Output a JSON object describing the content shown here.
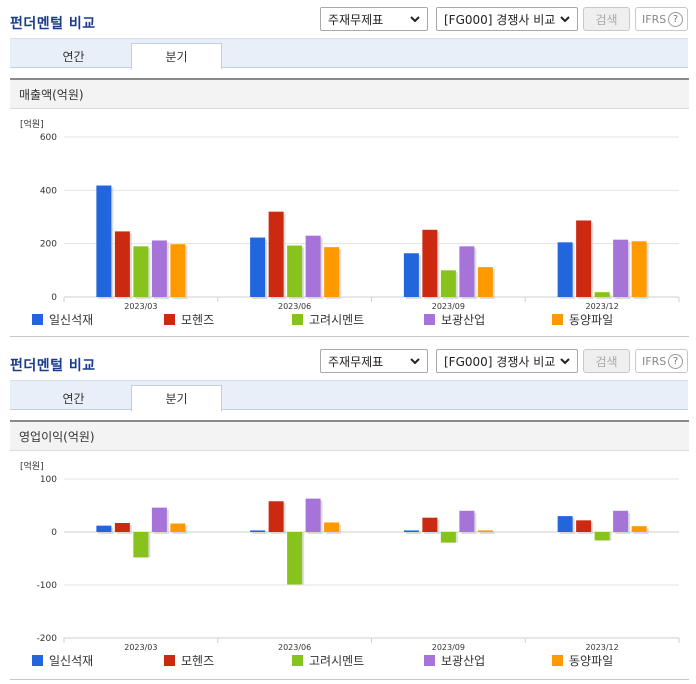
{
  "common": {
    "section_title": "펀더멘털 비교",
    "select_statement": "주재무제표",
    "select_group": "[FG000] 경쟁사 비교",
    "search_label": "검색",
    "ifrs_label": "IFRS",
    "help_label": "?",
    "tab_annual": "연간",
    "tab_quarter": "분기",
    "unit_label": "[억원]"
  },
  "colors": {
    "일신석재": "#2266dd",
    "모헨즈": "#cc2a10",
    "고려시멘트": "#88c21c",
    "보광산업": "#a673d8",
    "동양파일": "#ff9900"
  },
  "charts": [
    {
      "heading": "매출액(억원)",
      "chart_data": {
        "type": "bar",
        "title": "매출액(억원)",
        "unit": "[억원]",
        "categories": [
          "2023/03",
          "2023/06",
          "2023/09",
          "2023/12"
        ],
        "ylim": [
          0,
          600
        ],
        "yticks": [
          0,
          200,
          400,
          600
        ],
        "grid": true,
        "legend": "bottom",
        "series": [
          {
            "name": "일신석재",
            "values": [
              418,
              223,
              164,
              205
            ]
          },
          {
            "name": "모헨즈",
            "values": [
              246,
              320,
              252,
              287
            ]
          },
          {
            "name": "고려시멘트",
            "values": [
              190,
              193,
              100,
              18
            ]
          },
          {
            "name": "보광산업",
            "values": [
              212,
              230,
              190,
              215
            ]
          },
          {
            "name": "동양파일",
            "values": [
              198,
              187,
              112,
              209
            ]
          }
        ]
      }
    },
    {
      "heading": "영업이익(억원)",
      "chart_data": {
        "type": "bar",
        "title": "영업이익(억원)",
        "unit": "[억원]",
        "categories": [
          "2023/03",
          "2023/06",
          "2023/09",
          "2023/12"
        ],
        "ylim": [
          -200,
          100
        ],
        "yticks": [
          -200,
          -100,
          0,
          100
        ],
        "grid": true,
        "legend": "bottom",
        "series": [
          {
            "name": "일신석재",
            "values": [
              12,
              3,
              3,
              30
            ]
          },
          {
            "name": "모헨즈",
            "values": [
              17,
              58,
              27,
              22
            ]
          },
          {
            "name": "고려시멘트",
            "values": [
              -48,
              -99,
              -20,
              -16
            ]
          },
          {
            "name": "보광산업",
            "values": [
              46,
              63,
              40,
              40
            ]
          },
          {
            "name": "동양파일",
            "values": [
              16,
              18,
              3,
              11
            ]
          }
        ]
      }
    }
  ]
}
